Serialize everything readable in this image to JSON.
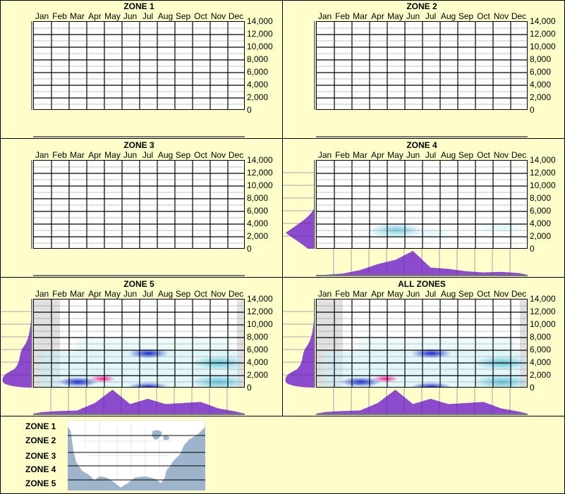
{
  "months": [
    "Jan",
    "Feb",
    "Mar",
    "Apr",
    "May",
    "Jun",
    "Jul",
    "Aug",
    "Sep",
    "Oct",
    "Nov",
    "Dec"
  ],
  "y_ticks": [
    "14,000",
    "12,000",
    "10,000",
    "8,000",
    "6,000",
    "4,000",
    "2,000",
    "0"
  ],
  "colors": {
    "background": "#ffffcc",
    "distribution": "#8b4bcc",
    "low": "#c8f0f4",
    "mid": "#3ab0cc",
    "high": "#0010c8",
    "peak": "#ff1a8c",
    "no_data": "#e0e0e0"
  },
  "panels": [
    {
      "title": "ZONE 1"
    },
    {
      "title": "ZONE 2"
    },
    {
      "title": "ZONE 3"
    },
    {
      "title": "ZONE 4"
    },
    {
      "title": "ZONE 5"
    },
    {
      "title": "ALL ZONES"
    }
  ],
  "legend": {
    "zones": [
      "ZONE 1",
      "ZONE 2",
      "ZONE 3",
      "ZONE 4",
      "ZONE 5"
    ]
  },
  "chart_data": [
    {
      "type": "heatmap",
      "title": "ZONE 1",
      "x": [
        "Jan",
        "Feb",
        "Mar",
        "Apr",
        "May",
        "Jun",
        "Jul",
        "Aug",
        "Sep",
        "Oct",
        "Nov",
        "Dec"
      ],
      "ylim": [
        0,
        14000
      ],
      "yticks": [
        0,
        2000,
        4000,
        6000,
        8000,
        10000,
        12000,
        14000
      ],
      "values": []
    },
    {
      "type": "heatmap",
      "title": "ZONE 2",
      "x": [
        "Jan",
        "Feb",
        "Mar",
        "Apr",
        "May",
        "Jun",
        "Jul",
        "Aug",
        "Sep",
        "Oct",
        "Nov",
        "Dec"
      ],
      "ylim": [
        0,
        14000
      ],
      "yticks": [
        0,
        2000,
        4000,
        6000,
        8000,
        10000,
        12000,
        14000
      ],
      "values": []
    },
    {
      "type": "heatmap",
      "title": "ZONE 3",
      "x": [
        "Jan",
        "Feb",
        "Mar",
        "Apr",
        "May",
        "Jun",
        "Jul",
        "Aug",
        "Sep",
        "Oct",
        "Nov",
        "Dec"
      ],
      "ylim": [
        0,
        14000
      ],
      "yticks": [
        0,
        2000,
        4000,
        6000,
        8000,
        10000,
        12000,
        14000
      ],
      "values": []
    },
    {
      "type": "heatmap",
      "title": "ZONE 4",
      "x": [
        "Jan",
        "Feb",
        "Mar",
        "Apr",
        "May",
        "Jun",
        "Jul",
        "Aug",
        "Sep",
        "Oct",
        "Nov",
        "Dec"
      ],
      "ylim": [
        0,
        14000
      ],
      "yticks": [
        0,
        2000,
        4000,
        6000,
        8000,
        10000,
        12000,
        14000
      ],
      "hotspots": [
        {
          "month": "May",
          "elevation": 3000,
          "intensity": "medium"
        },
        {
          "month": "Apr",
          "elevation": 2500,
          "intensity": "low"
        },
        {
          "month": "Jul",
          "elevation": 2500,
          "intensity": "low"
        },
        {
          "month": "Nov",
          "elevation": 3500,
          "intensity": "low"
        }
      ],
      "month_distribution": [
        0,
        2,
        8,
        18,
        25,
        40,
        12,
        10,
        6,
        4,
        5,
        3
      ],
      "elevation_distribution_peak": 2500
    },
    {
      "type": "heatmap",
      "title": "ZONE 5",
      "x": [
        "Jan",
        "Feb",
        "Mar",
        "Apr",
        "May",
        "Jun",
        "Jul",
        "Aug",
        "Sep",
        "Oct",
        "Nov",
        "Dec"
      ],
      "ylim": [
        0,
        14000
      ],
      "yticks": [
        0,
        2000,
        4000,
        6000,
        8000,
        10000,
        12000,
        14000
      ],
      "hotspots": [
        {
          "month": "Apr",
          "elevation": 1500,
          "intensity": "peak"
        },
        {
          "month": "Mar",
          "elevation": 1000,
          "intensity": "high"
        },
        {
          "month": "Jul",
          "elevation": 5500,
          "intensity": "high"
        },
        {
          "month": "Jul",
          "elevation": 200,
          "intensity": "high"
        },
        {
          "month": "Nov",
          "elevation": 1000,
          "intensity": "medium"
        },
        {
          "month": "Nov",
          "elevation": 4000,
          "intensity": "medium"
        }
      ],
      "no_data_months": [
        "Jan",
        "Dec"
      ],
      "month_distribution": [
        3,
        5,
        6,
        20,
        45,
        18,
        28,
        18,
        20,
        22,
        10,
        4
      ],
      "elevation_distribution_peak": 1500
    },
    {
      "type": "heatmap",
      "title": "ALL ZONES",
      "x": [
        "Jan",
        "Feb",
        "Mar",
        "Apr",
        "May",
        "Jun",
        "Jul",
        "Aug",
        "Sep",
        "Oct",
        "Nov",
        "Dec"
      ],
      "ylim": [
        0,
        14000
      ],
      "yticks": [
        0,
        2000,
        4000,
        6000,
        8000,
        10000,
        12000,
        14000
      ],
      "hotspots": [
        {
          "month": "Apr",
          "elevation": 1500,
          "intensity": "peak"
        },
        {
          "month": "Mar",
          "elevation": 1000,
          "intensity": "high"
        },
        {
          "month": "Jul",
          "elevation": 5500,
          "intensity": "high"
        },
        {
          "month": "Jul",
          "elevation": 200,
          "intensity": "high"
        },
        {
          "month": "Nov",
          "elevation": 1000,
          "intensity": "medium"
        },
        {
          "month": "Nov",
          "elevation": 4000,
          "intensity": "medium"
        }
      ],
      "no_data_months": [
        "Jan",
        "Dec"
      ],
      "month_distribution": [
        3,
        5,
        6,
        20,
        45,
        18,
        28,
        18,
        20,
        22,
        10,
        4
      ],
      "elevation_distribution_peak": 1500
    }
  ]
}
